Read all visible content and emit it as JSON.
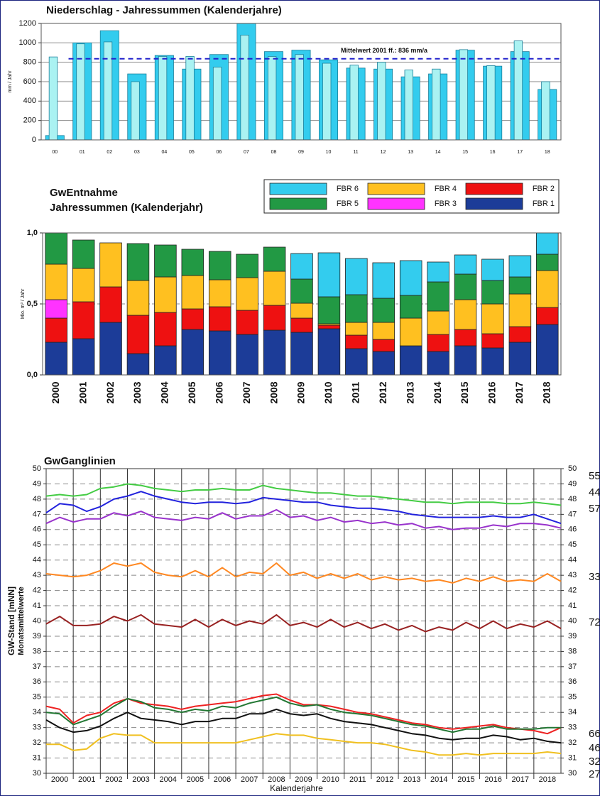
{
  "chart_data": [
    {
      "type": "bar",
      "title": "Niederschlag - Jahressummen (Kalenderjahre)",
      "ylabel": "mm / Jahr",
      "categories": [
        "00",
        "01",
        "02",
        "03",
        "04",
        "05",
        "06",
        "07",
        "08",
        "09",
        "10",
        "11",
        "12",
        "13",
        "14",
        "15",
        "16",
        "17",
        "18"
      ],
      "series": [
        {
          "color": "#33ccee",
          "values": [
            45,
            1000,
            1125,
            680,
            870,
            730,
            880,
            1200,
            910,
            925,
            825,
            740,
            730,
            650,
            680,
            925,
            760,
            910,
            520
          ]
        },
        {
          "color": "#aaf2f2",
          "values": [
            855,
            990,
            1010,
            600,
            860,
            860,
            750,
            1080,
            860,
            880,
            790,
            770,
            800,
            720,
            730,
            930,
            765,
            1020,
            600
          ]
        }
      ],
      "reference_line": {
        "value": 836,
        "label": "Mittelwert 2001 ff.: 836 mm/a",
        "color": "#2222cc"
      },
      "ylim": [
        0,
        1200
      ],
      "yticks": [
        0,
        200,
        400,
        600,
        800,
        1000,
        1200
      ],
      "grid": true
    },
    {
      "type": "stacked_bar",
      "title": [
        "GwEntnahme",
        "Jahressummen (Kalenderjahr)"
      ],
      "ylabel": "Mio. m³ / Jahr",
      "categories": [
        "2000",
        "2001",
        "2002",
        "2003",
        "2004",
        "2005",
        "2006",
        "2007",
        "2008",
        "2009",
        "2010",
        "2011",
        "2012",
        "2013",
        "2014",
        "2015",
        "2016",
        "2017",
        "2018"
      ],
      "series": [
        {
          "name": "FBR 1",
          "color": "#1c3c98",
          "values": [
            0.23,
            0.255,
            0.37,
            0.15,
            0.205,
            0.32,
            0.31,
            0.285,
            0.315,
            0.3,
            0.325,
            0.185,
            0.165,
            0.205,
            0.165,
            0.205,
            0.19,
            0.23,
            0.355
          ]
        },
        {
          "name": "FBR 2",
          "color": "#ee1111",
          "values": [
            0.17,
            0.26,
            0.25,
            0.27,
            0.235,
            0.145,
            0.17,
            0.17,
            0.175,
            0.1,
            0.025,
            0.095,
            0.085,
            0,
            0.12,
            0.115,
            0.1,
            0.11,
            0.12
          ]
        },
        {
          "name": "FBR 3",
          "color": "#ff33ff",
          "values": [
            0.13,
            0,
            0,
            0,
            0,
            0,
            0,
            0,
            0,
            0,
            0,
            0,
            0,
            0,
            0,
            0,
            0,
            0,
            0
          ]
        },
        {
          "name": "FBR 4",
          "color": "#ffc020",
          "values": [
            0.25,
            0.235,
            0.31,
            0.245,
            0.25,
            0.235,
            0.19,
            0.23,
            0.24,
            0.105,
            0.01,
            0.09,
            0.12,
            0.195,
            0.165,
            0.21,
            0.21,
            0.23,
            0.26
          ]
        },
        {
          "name": "FBR 5",
          "color": "#229944",
          "values": [
            0.22,
            0.2,
            0,
            0.26,
            0.225,
            0.185,
            0.2,
            0.165,
            0.17,
            0.17,
            0.19,
            0.195,
            0.17,
            0.16,
            0.205,
            0.18,
            0.165,
            0.12,
            0.115
          ]
        },
        {
          "name": "FBR 6",
          "color": "#33ccee",
          "values": [
            0,
            0,
            0,
            0,
            0,
            0,
            0,
            0,
            0,
            0.18,
            0.31,
            0.255,
            0.25,
            0.245,
            0.14,
            0.135,
            0.15,
            0.15,
            0.15
          ]
        }
      ],
      "ylim": [
        0,
        1
      ],
      "yticks": [
        {
          "value": 0,
          "label": "0,0"
        },
        {
          "value": 0.5,
          "label": "0,5"
        },
        {
          "value": 1,
          "label": "1,0"
        }
      ],
      "grid": true
    },
    {
      "type": "line",
      "title": "GwGanglinien",
      "ylabel": [
        "GW-Stand [mNN]",
        "Monatsmittelwerte"
      ],
      "xlabel": "Kalenderjahre",
      "x": [
        2000,
        2000.5,
        2001,
        2001.5,
        2002,
        2002.5,
        2003,
        2003.5,
        2004,
        2004.5,
        2005,
        2005.5,
        2006,
        2006.5,
        2007,
        2007.5,
        2008,
        2008.5,
        2009,
        2009.5,
        2010,
        2010.5,
        2011,
        2011.5,
        2012,
        2012.5,
        2013,
        2013.5,
        2014,
        2014.5,
        2015,
        2015.5,
        2016,
        2016.5,
        2017,
        2017.5,
        2018,
        2018.5,
        2019
      ],
      "series": [
        {
          "name": "55",
          "color": "#44cc44",
          "values": [
            48.2,
            48.3,
            48.2,
            48.3,
            48.7,
            48.8,
            49.0,
            48.9,
            48.7,
            48.6,
            48.5,
            48.6,
            48.6,
            48.7,
            48.6,
            48.6,
            48.9,
            48.7,
            48.6,
            48.5,
            48.4,
            48.4,
            48.3,
            48.2,
            48.2,
            48.1,
            48.0,
            47.9,
            47.8,
            47.8,
            47.7,
            47.8,
            47.8,
            47.8,
            47.7,
            47.7,
            47.8,
            47.7,
            47.6
          ]
        },
        {
          "name": "44",
          "color": "#2222dd",
          "values": [
            47.1,
            47.7,
            47.6,
            47.2,
            47.5,
            48.0,
            48.2,
            48.5,
            48.2,
            48.0,
            47.8,
            47.7,
            47.8,
            47.8,
            47.7,
            47.8,
            48.1,
            48.0,
            47.9,
            47.8,
            47.8,
            47.6,
            47.5,
            47.4,
            47.4,
            47.3,
            47.2,
            47.0,
            46.9,
            46.8,
            46.8,
            46.8,
            46.8,
            46.9,
            46.8,
            46.8,
            47.0,
            46.7,
            46.4
          ]
        },
        {
          "name": "57",
          "color": "#9933cc",
          "values": [
            46.4,
            46.8,
            46.5,
            46.7,
            46.7,
            47.1,
            46.9,
            47.2,
            46.8,
            46.7,
            46.6,
            46.8,
            46.7,
            47.1,
            46.7,
            46.9,
            46.9,
            47.3,
            46.8,
            46.9,
            46.6,
            46.8,
            46.5,
            46.6,
            46.4,
            46.5,
            46.3,
            46.4,
            46.1,
            46.2,
            46.0,
            46.1,
            46.1,
            46.3,
            46.2,
            46.4,
            46.4,
            46.3,
            46.1
          ]
        },
        {
          "name": "33",
          "color": "#ff8822",
          "values": [
            43.1,
            43.0,
            42.9,
            43.0,
            43.3,
            43.8,
            43.6,
            43.8,
            43.2,
            43.0,
            42.9,
            43.3,
            42.9,
            43.5,
            42.9,
            43.2,
            43.1,
            43.8,
            43.0,
            43.2,
            42.8,
            43.1,
            42.8,
            43.1,
            42.7,
            42.9,
            42.7,
            42.8,
            42.6,
            42.7,
            42.5,
            42.8,
            42.6,
            42.9,
            42.6,
            42.7,
            42.6,
            43.1,
            42.6
          ]
        },
        {
          "name": "72",
          "color": "#992222",
          "values": [
            39.8,
            40.3,
            39.7,
            39.7,
            39.8,
            40.3,
            40.0,
            40.4,
            39.8,
            39.7,
            39.6,
            40.1,
            39.6,
            40.1,
            39.7,
            40.0,
            39.8,
            40.4,
            39.7,
            39.9,
            39.6,
            40.1,
            39.6,
            39.9,
            39.5,
            39.8,
            39.4,
            39.7,
            39.3,
            39.6,
            39.4,
            39.9,
            39.5,
            40.0,
            39.5,
            39.8,
            39.6,
            40.0,
            39.5
          ]
        },
        {
          "name": "66",
          "color": "#ee2222",
          "values": [
            34.4,
            34.2,
            33.3,
            33.8,
            34.0,
            34.6,
            34.9,
            34.6,
            34.5,
            34.4,
            34.2,
            34.4,
            34.5,
            34.6,
            34.7,
            34.9,
            35.1,
            35.2,
            34.8,
            34.5,
            34.5,
            34.4,
            34.2,
            34.0,
            33.9,
            33.7,
            33.5,
            33.3,
            33.2,
            33.0,
            32.9,
            33.0,
            33.1,
            33.2,
            33.0,
            32.9,
            32.8,
            32.6,
            33.0
          ]
        },
        {
          "name": "46",
          "color": "#227733",
          "values": [
            34.0,
            33.9,
            33.2,
            33.5,
            33.8,
            34.4,
            34.9,
            34.7,
            34.3,
            34.2,
            34.0,
            34.2,
            34.1,
            34.4,
            34.3,
            34.6,
            34.8,
            35.0,
            34.6,
            34.4,
            34.5,
            34.2,
            34.0,
            33.9,
            33.8,
            33.6,
            33.4,
            33.2,
            33.1,
            32.9,
            32.7,
            32.9,
            32.9,
            33.1,
            32.9,
            32.9,
            32.9,
            33.0,
            33.0
          ]
        },
        {
          "name": "32",
          "color": "#111111",
          "values": [
            33.5,
            33.0,
            32.7,
            32.8,
            33.1,
            33.6,
            34.0,
            33.6,
            33.5,
            33.4,
            33.2,
            33.4,
            33.4,
            33.6,
            33.6,
            33.9,
            33.9,
            34.2,
            33.9,
            33.8,
            33.9,
            33.6,
            33.4,
            33.3,
            33.2,
            33.0,
            32.8,
            32.6,
            32.5,
            32.3,
            32.2,
            32.3,
            32.3,
            32.5,
            32.4,
            32.2,
            32.3,
            32.1,
            32.0
          ]
        },
        {
          "name": "27",
          "color": "#f0c020",
          "values": [
            31.9,
            31.9,
            31.5,
            31.6,
            32.3,
            32.6,
            32.5,
            32.5,
            32.0,
            32.0,
            32.0,
            32.0,
            32.0,
            32.0,
            32.0,
            32.2,
            32.4,
            32.6,
            32.5,
            32.5,
            32.3,
            32.2,
            32.1,
            32.0,
            32.0,
            31.9,
            31.7,
            31.5,
            31.4,
            31.2,
            31.2,
            31.3,
            31.2,
            31.3,
            31.3,
            31.3,
            31.3,
            31.4,
            31.3
          ]
        }
      ],
      "xlim": [
        2000,
        2019
      ],
      "xticks": [
        {
          "value": 2000.5,
          "label": "2000"
        },
        {
          "value": 2001.5,
          "label": "2001"
        },
        {
          "value": 2002.5,
          "label": "2002"
        },
        {
          "value": 2003.5,
          "label": "2003"
        },
        {
          "value": 2004.5,
          "label": "2004"
        },
        {
          "value": 2005.5,
          "label": "2005"
        },
        {
          "value": 2006.5,
          "label": "2006"
        },
        {
          "value": 2007.5,
          "label": "2007"
        },
        {
          "value": 2008.5,
          "label": "2008"
        },
        {
          "value": 2009.5,
          "label": "2009"
        },
        {
          "value": 2010.5,
          "label": "2010"
        },
        {
          "value": 2011.5,
          "label": "2011"
        },
        {
          "value": 2012.5,
          "label": "2012"
        },
        {
          "value": 2013.5,
          "label": "2013"
        },
        {
          "value": 2014.5,
          "label": "2014"
        },
        {
          "value": 2015.5,
          "label": "2015"
        },
        {
          "value": 2016.5,
          "label": "2016"
        },
        {
          "value": 2017.5,
          "label": "2017"
        },
        {
          "value": 2018.5,
          "label": "2018"
        }
      ],
      "ylim": [
        30,
        50
      ],
      "yticks": [
        30,
        31,
        32,
        33,
        34,
        35,
        36,
        37,
        38,
        39,
        40,
        41,
        42,
        43,
        44,
        45,
        46,
        47,
        48,
        49,
        50
      ],
      "y2lim": [
        30,
        50
      ],
      "y2ticks": [
        30,
        31,
        32,
        33,
        34,
        35,
        36,
        37,
        38,
        39,
        40,
        41,
        42,
        43,
        44,
        45,
        46,
        47,
        48,
        49,
        50
      ],
      "grid": true
    }
  ]
}
